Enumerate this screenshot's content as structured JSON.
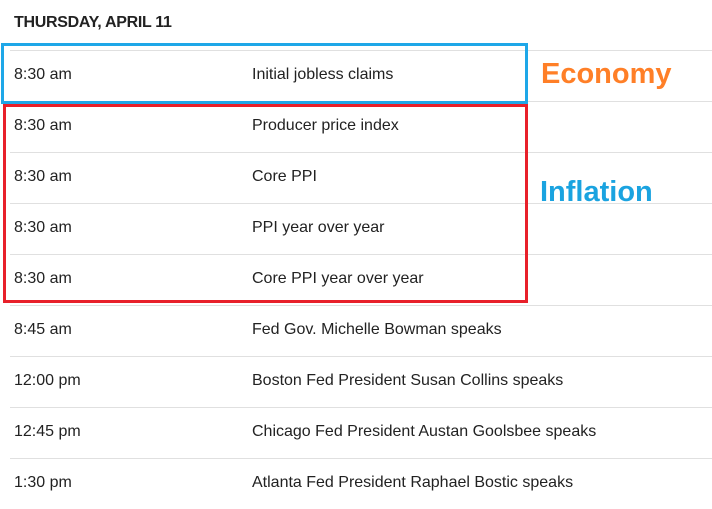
{
  "day_header": "THURSDAY, APRIL 11",
  "events": [
    {
      "time": "8:30 am",
      "event": "Initial jobless claims"
    },
    {
      "time": "8:30 am",
      "event": "Producer price index"
    },
    {
      "time": "8:30 am",
      "event": "Core PPI"
    },
    {
      "time": "8:30 am",
      "event": "PPI year over year"
    },
    {
      "time": "8:30 am",
      "event": "Core PPI year over year"
    },
    {
      "time": "8:45 am",
      "event": "Fed Gov. Michelle Bowman speaks"
    },
    {
      "time": "12:00 pm",
      "event": "Boston Fed President Susan Collins speaks"
    },
    {
      "time": "12:45 pm",
      "event": "Chicago Fed President Austan Goolsbee speaks"
    },
    {
      "time": "1:30 pm",
      "event": "Atlanta Fed President Raphael Bostic speaks"
    }
  ],
  "annotations": {
    "economy": "Economy",
    "inflation": "Inflation"
  },
  "colors": {
    "economy_box": "#1ea7e8",
    "inflation_box": "#e8202a",
    "economy_label": "#ff7f27",
    "inflation_label": "#1aa3e0"
  }
}
